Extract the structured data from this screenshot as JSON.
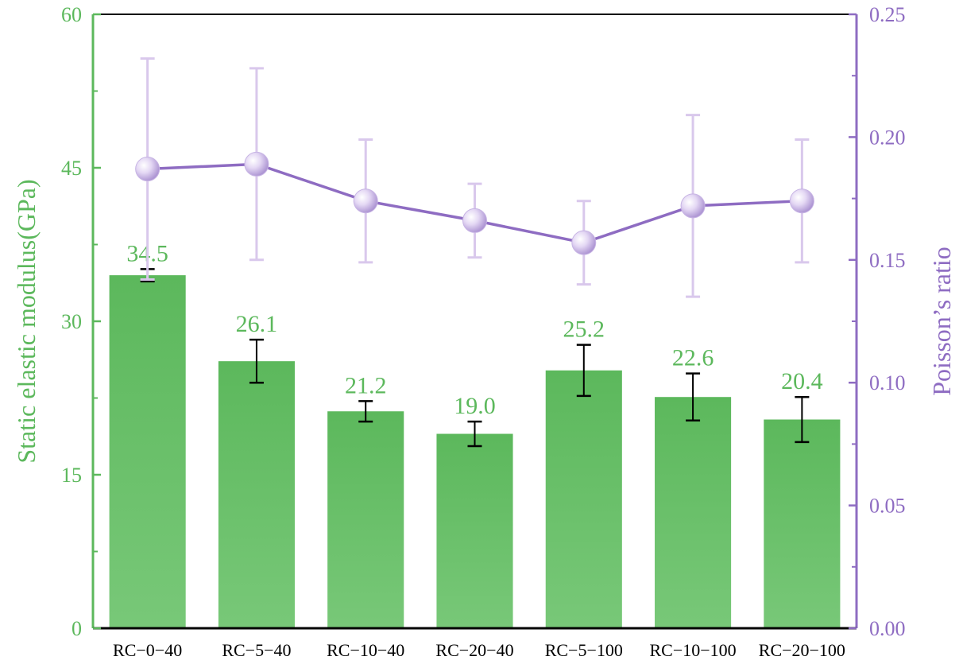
{
  "chart_data": {
    "type": "bar",
    "categories": [
      "RC−0−40",
      "RC−5−40",
      "RC−10−40",
      "RC−20−40",
      "RC−5−100",
      "RC−10−100",
      "RC−20−100"
    ],
    "series": [
      {
        "type": "bar",
        "axis": "left",
        "values": [
          34.5,
          26.1,
          21.2,
          19.0,
          25.2,
          22.6,
          20.4
        ],
        "value_labels": [
          "34.5",
          "26.1",
          "21.2",
          "19.0",
          "25.2",
          "22.6",
          "20.4"
        ],
        "error": [
          0.6,
          2.1,
          1.0,
          1.2,
          2.5,
          2.3,
          2.2
        ],
        "color": "#63bb63"
      },
      {
        "type": "line",
        "axis": "right",
        "values": [
          0.187,
          0.189,
          0.174,
          0.166,
          0.157,
          0.172,
          0.174
        ],
        "error": [
          0.045,
          0.039,
          0.025,
          0.015,
          0.017,
          0.037,
          0.025
        ],
        "color": "#8e6cc2"
      }
    ],
    "ylabel": "Static elastic modulus(GPa)",
    "ylabel_right": "Poisson’s ratio",
    "ylim": [
      0,
      60
    ],
    "ylim_right": [
      0,
      0.25
    ],
    "yticks": [
      "0",
      "15",
      "30",
      "45",
      "60"
    ],
    "yticks_right": [
      "0.00",
      "0.05",
      "0.10",
      "0.15",
      "0.20",
      "0.25"
    ],
    "colors": {
      "left_axis": "#5cb85c",
      "right_axis": "#8e6cc2",
      "bar": "#63bb63",
      "line": "#8e6cc2",
      "line_error": "#d9c8ec",
      "bar_error": "#000000"
    }
  }
}
